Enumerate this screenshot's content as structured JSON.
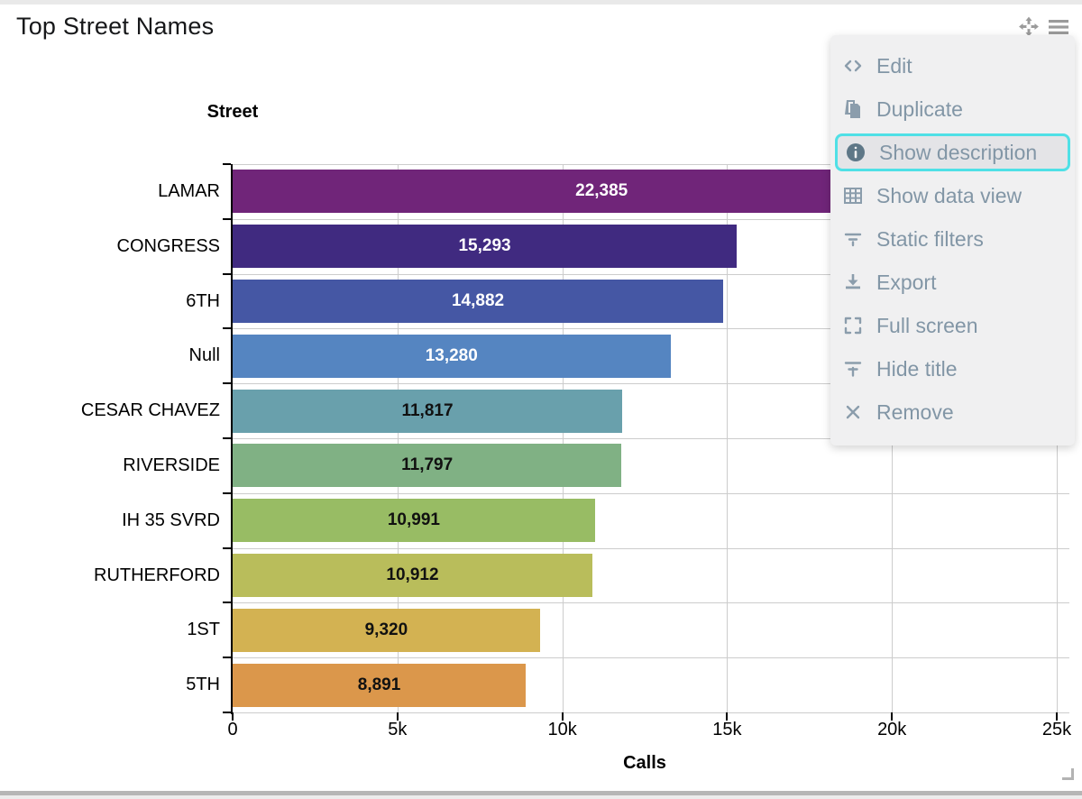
{
  "widget": {
    "title": "Top Street Names"
  },
  "header_controls": {
    "move_icon": "move-icon",
    "menu_icon": "hamburger-icon"
  },
  "menu": {
    "highlight_color": "#4fe0e6",
    "items": [
      {
        "icon": "code-icon",
        "label": "Edit",
        "highlighted": false
      },
      {
        "icon": "duplicate-icon",
        "label": "Duplicate",
        "highlighted": false
      },
      {
        "icon": "info-icon",
        "label": "Show description",
        "highlighted": true
      },
      {
        "icon": "table-icon",
        "label": "Show data view",
        "highlighted": false
      },
      {
        "icon": "filter-icon",
        "label": "Static filters",
        "highlighted": false
      },
      {
        "icon": "export-icon",
        "label": "Export",
        "highlighted": false
      },
      {
        "icon": "fullscreen-icon",
        "label": "Full screen",
        "highlighted": false
      },
      {
        "icon": "hide-title-icon",
        "label": "Hide title",
        "highlighted": false
      },
      {
        "icon": "remove-icon",
        "label": "Remove",
        "highlighted": false
      }
    ]
  },
  "chart_data": {
    "type": "bar",
    "orientation": "horizontal",
    "title": "Top Street Names",
    "xlabel": "Calls",
    "ylabel": "Street",
    "categories": [
      "LAMAR",
      "CONGRESS",
      "6TH",
      "Null",
      "CESAR CHAVEZ",
      "RIVERSIDE",
      "IH 35 SVRD",
      "RUTHERFORD",
      "1ST",
      "5TH"
    ],
    "values": [
      22385,
      15293,
      14882,
      13280,
      11817,
      11797,
      10991,
      10912,
      9320,
      8891
    ],
    "value_labels": [
      "22,385",
      "15,293",
      "14,882",
      "13,280",
      "11,817",
      "11,797",
      "10,991",
      "10,912",
      "9,320",
      "8,891"
    ],
    "bar_colors": [
      "#702579",
      "#402A80",
      "#4557A4",
      "#5585C1",
      "#69A0AC",
      "#80B184",
      "#98BC64",
      "#B9BD5B",
      "#D3B252",
      "#DB974B"
    ],
    "value_label_colors": [
      "#ffffff",
      "#ffffff",
      "#ffffff",
      "#ffffff",
      "#111111",
      "#111111",
      "#111111",
      "#111111",
      "#111111",
      "#111111"
    ],
    "xlim": [
      0,
      25000
    ],
    "xticks": [
      0,
      5000,
      10000,
      15000,
      20000,
      25000
    ],
    "xtick_labels": [
      "0",
      "5k",
      "10k",
      "15k",
      "20k",
      "25k"
    ],
    "grid": true,
    "legend": false
  }
}
